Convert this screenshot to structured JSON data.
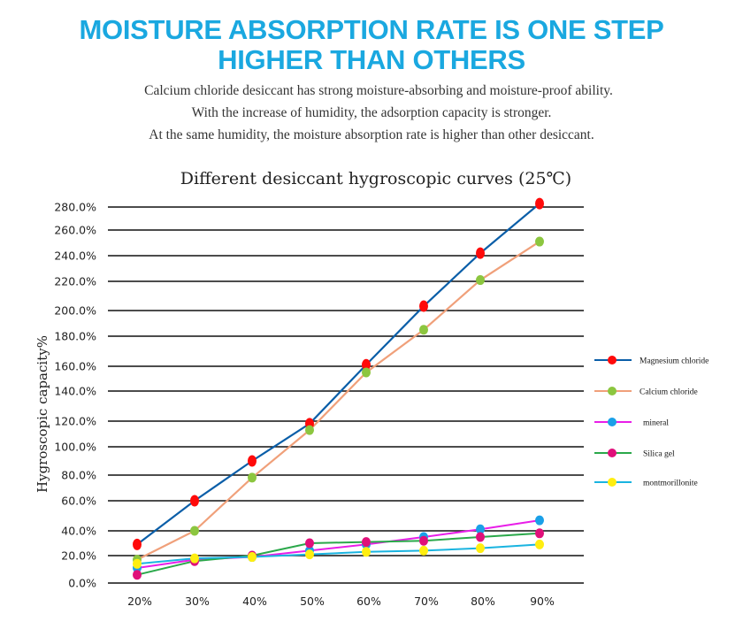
{
  "header": {
    "headline_line1": "MOISTURE ABSORPTION RATE IS ONE STEP",
    "headline_line2": "HIGHER THAN OTHERS",
    "description": [
      "Calcium chloride desiccant has strong moisture-absorbing and moisture-proof ability.",
      "With the increase of humidity, the adsorption capacity is stronger.",
      "At the same humidity, the moisture absorption rate is higher than other desiccant."
    ]
  },
  "colors": {
    "headline": "#1aa8e0"
  },
  "chart_data": {
    "type": "line",
    "title": "Different desiccant hygroscopic curves (25℃)",
    "xlabel": "",
    "ylabel": "Hygroscopic capacity%",
    "categories": [
      "20%",
      "30%",
      "40%",
      "50%",
      "60%",
      "70%",
      "80%",
      "90%"
    ],
    "y_ticks": [
      0,
      20,
      40,
      60,
      80,
      100,
      120,
      140,
      160,
      180,
      200,
      220,
      240,
      260,
      280
    ],
    "y_tick_labels": [
      "0.0%",
      "20.0%",
      "40.0%",
      "60.0%",
      "80.0%",
      "100.0%",
      "120.0%",
      "140.0%",
      "160.0%",
      "180.0%",
      "200.0%",
      "220.0%",
      "240.0%",
      "260.0%",
      "280.0%"
    ],
    "ylim": [
      0,
      280
    ],
    "grid": true,
    "legend_position": "right",
    "series": [
      {
        "name": "Magnesium chloride",
        "line_color": "#0a5ea8",
        "marker_color": "#ff0a0a",
        "values": [
          29,
          60,
          90,
          118,
          161,
          203,
          242,
          283
        ]
      },
      {
        "name": "Calcium chloride",
        "line_color": "#f0a07a",
        "marker_color": "#8cc63f",
        "values": [
          17,
          40,
          78,
          113,
          155,
          185,
          221,
          251
        ]
      },
      {
        "name": "mineral",
        "line_color": "#e81ee8",
        "marker_color": "#1aa0e8",
        "values": [
          11,
          17,
          19,
          24,
          29,
          35,
          41,
          47
        ]
      },
      {
        "name": "Silica gel",
        "line_color": "#2aa84a",
        "marker_color": "#e0107a",
        "values": [
          6,
          16,
          20,
          30,
          31,
          32,
          35,
          38
        ]
      },
      {
        "name": "montmorillonite",
        "line_color": "#1ab4e0",
        "marker_color": "#ffee10",
        "values": [
          14,
          18,
          19,
          21,
          23,
          24,
          26,
          29
        ]
      }
    ]
  }
}
